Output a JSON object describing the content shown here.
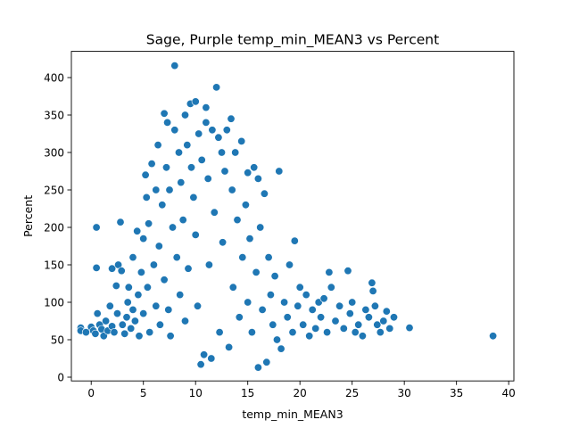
{
  "chart_data": {
    "type": "scatter",
    "title": "Sage, Purple temp_min_MEAN3 vs Percent",
    "xlabel": "temp_min_MEAN3",
    "ylabel": "Percent",
    "xlim": [
      -1.9,
      40.5
    ],
    "ylim": [
      -5,
      435
    ],
    "xticks": [
      0,
      5,
      10,
      15,
      20,
      25,
      30,
      35,
      40
    ],
    "yticks": [
      0,
      50,
      100,
      150,
      200,
      250,
      300,
      350,
      400
    ],
    "marker_color": "#1f77b4",
    "grid": false,
    "legend": "none",
    "points": [
      [
        -1.0,
        66
      ],
      [
        -1.0,
        62
      ],
      [
        -0.5,
        60
      ],
      [
        0,
        67
      ],
      [
        0.2,
        62
      ],
      [
        0.4,
        58
      ],
      [
        0.5,
        200
      ],
      [
        0.5,
        146
      ],
      [
        0.6,
        85
      ],
      [
        0.8,
        70
      ],
      [
        1.0,
        64
      ],
      [
        1.2,
        55
      ],
      [
        1.4,
        75
      ],
      [
        1.6,
        62
      ],
      [
        1.8,
        95
      ],
      [
        2.0,
        145
      ],
      [
        2.0,
        68
      ],
      [
        2.2,
        60
      ],
      [
        2.4,
        122
      ],
      [
        2.5,
        85
      ],
      [
        2.6,
        150
      ],
      [
        2.8,
        207
      ],
      [
        2.9,
        142
      ],
      [
        3.0,
        70
      ],
      [
        3.2,
        58
      ],
      [
        3.4,
        80
      ],
      [
        3.5,
        100
      ],
      [
        3.6,
        120
      ],
      [
        3.8,
        65
      ],
      [
        4.0,
        90
      ],
      [
        4.0,
        160
      ],
      [
        4.2,
        75
      ],
      [
        4.4,
        195
      ],
      [
        4.5,
        110
      ],
      [
        4.6,
        55
      ],
      [
        4.8,
        140
      ],
      [
        5.0,
        185
      ],
      [
        5.0,
        85
      ],
      [
        5.2,
        270
      ],
      [
        5.3,
        240
      ],
      [
        5.4,
        120
      ],
      [
        5.5,
        205
      ],
      [
        5.6,
        60
      ],
      [
        5.8,
        285
      ],
      [
        6.0,
        150
      ],
      [
        6.2,
        95
      ],
      [
        6.2,
        250
      ],
      [
        6.4,
        310
      ],
      [
        6.5,
        175
      ],
      [
        6.6,
        70
      ],
      [
        6.8,
        230
      ],
      [
        7.0,
        130
      ],
      [
        7.0,
        352
      ],
      [
        7.2,
        280
      ],
      [
        7.3,
        340
      ],
      [
        7.4,
        90
      ],
      [
        7.5,
        250
      ],
      [
        7.6,
        55
      ],
      [
        7.8,
        200
      ],
      [
        8.0,
        416
      ],
      [
        8.0,
        330
      ],
      [
        8.2,
        160
      ],
      [
        8.4,
        300
      ],
      [
        8.5,
        110
      ],
      [
        8.6,
        260
      ],
      [
        8.8,
        210
      ],
      [
        9.0,
        350
      ],
      [
        9.0,
        75
      ],
      [
        9.2,
        310
      ],
      [
        9.3,
        145
      ],
      [
        9.5,
        365
      ],
      [
        9.6,
        280
      ],
      [
        9.8,
        240
      ],
      [
        10.0,
        368
      ],
      [
        10.0,
        190
      ],
      [
        10.2,
        95
      ],
      [
        10.3,
        325
      ],
      [
        10.5,
        17
      ],
      [
        10.6,
        290
      ],
      [
        10.8,
        30
      ],
      [
        11.0,
        360
      ],
      [
        11.0,
        340
      ],
      [
        11.2,
        265
      ],
      [
        11.3,
        150
      ],
      [
        11.5,
        25
      ],
      [
        11.6,
        330
      ],
      [
        11.8,
        220
      ],
      [
        12.0,
        387
      ],
      [
        12.2,
        320
      ],
      [
        12.3,
        60
      ],
      [
        12.5,
        300
      ],
      [
        12.6,
        180
      ],
      [
        12.8,
        275
      ],
      [
        13.0,
        330
      ],
      [
        13.2,
        40
      ],
      [
        13.4,
        345
      ],
      [
        13.5,
        250
      ],
      [
        13.6,
        120
      ],
      [
        13.8,
        300
      ],
      [
        14.0,
        210
      ],
      [
        14.2,
        80
      ],
      [
        14.4,
        315
      ],
      [
        14.5,
        160
      ],
      [
        14.8,
        230
      ],
      [
        15.0,
        273
      ],
      [
        15.0,
        100
      ],
      [
        15.2,
        185
      ],
      [
        15.4,
        60
      ],
      [
        15.6,
        280
      ],
      [
        15.8,
        140
      ],
      [
        16.0,
        265
      ],
      [
        16.0,
        13
      ],
      [
        16.2,
        200
      ],
      [
        16.4,
        90
      ],
      [
        16.6,
        245
      ],
      [
        16.8,
        20
      ],
      [
        17.0,
        160
      ],
      [
        17.2,
        110
      ],
      [
        17.4,
        70
      ],
      [
        17.6,
        135
      ],
      [
        17.8,
        50
      ],
      [
        18.0,
        275
      ],
      [
        18.2,
        38
      ],
      [
        18.5,
        100
      ],
      [
        18.8,
        80
      ],
      [
        19.0,
        150
      ],
      [
        19.3,
        60
      ],
      [
        19.5,
        182
      ],
      [
        19.8,
        95
      ],
      [
        20.0,
        120
      ],
      [
        20.3,
        70
      ],
      [
        20.6,
        110
      ],
      [
        20.9,
        55
      ],
      [
        21.2,
        90
      ],
      [
        21.5,
        65
      ],
      [
        21.8,
        100
      ],
      [
        22.0,
        80
      ],
      [
        22.3,
        105
      ],
      [
        22.6,
        60
      ],
      [
        22.8,
        140
      ],
      [
        23.0,
        120
      ],
      [
        23.4,
        75
      ],
      [
        23.8,
        95
      ],
      [
        24.2,
        65
      ],
      [
        24.6,
        142
      ],
      [
        24.8,
        85
      ],
      [
        25.0,
        100
      ],
      [
        25.3,
        60
      ],
      [
        25.6,
        70
      ],
      [
        26.0,
        55
      ],
      [
        26.3,
        90
      ],
      [
        26.6,
        80
      ],
      [
        26.9,
        126
      ],
      [
        27.0,
        115
      ],
      [
        27.2,
        95
      ],
      [
        27.4,
        70
      ],
      [
        27.7,
        60
      ],
      [
        28.0,
        75
      ],
      [
        28.3,
        88
      ],
      [
        28.6,
        65
      ],
      [
        29.0,
        80
      ],
      [
        30.5,
        66
      ],
      [
        38.5,
        55
      ]
    ]
  }
}
